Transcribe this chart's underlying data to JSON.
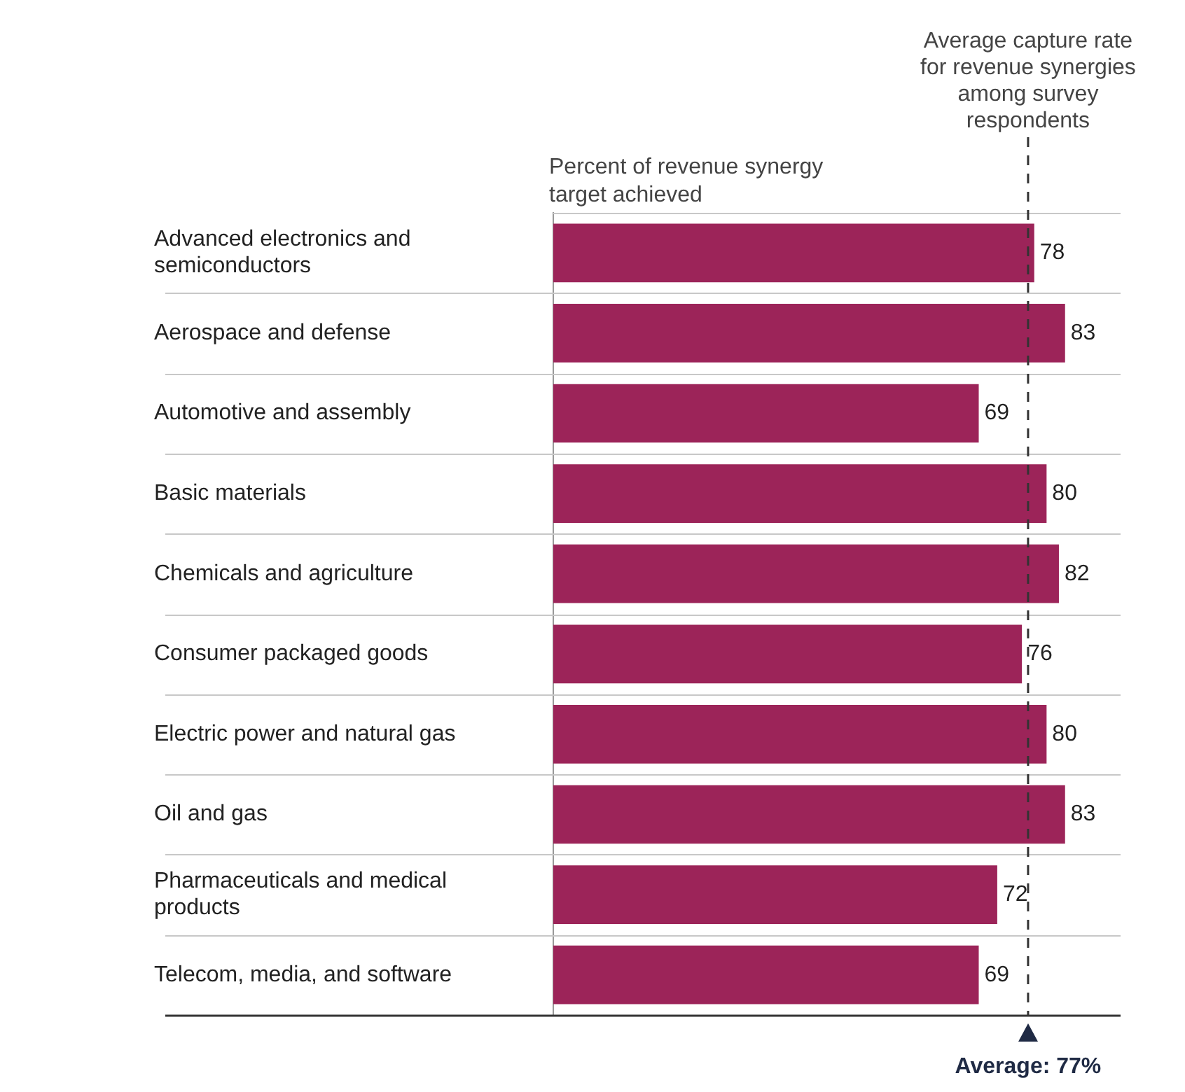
{
  "chart_data": {
    "type": "bar",
    "orientation": "horizontal",
    "xlabel": "Percent of revenue synergy target achieved",
    "categories": [
      "Advanced electronics and semiconductors",
      "Aerospace and defense",
      "Automotive and assembly",
      "Basic materials",
      "Chemicals and agriculture",
      "Consumer packaged goods",
      "Electric power and natural gas",
      "Oil and gas",
      "Pharmaceuticals and medical products",
      "Telecom, media, and software"
    ],
    "values": [
      78,
      83,
      69,
      80,
      82,
      76,
      80,
      83,
      72,
      69
    ],
    "color": "#9c2459",
    "xlim": [
      0,
      92
    ],
    "tick_labels": "y",
    "grid": "y",
    "legend": false,
    "data_labels": true,
    "ref_lines": [
      {
        "axis": "x",
        "value": 77,
        "label": "Average: 77%",
        "line_style": "dashed",
        "color": "#333333"
      }
    ],
    "annotations": [
      "Average capture rate for revenue synergies among survey respondents"
    ]
  }
}
